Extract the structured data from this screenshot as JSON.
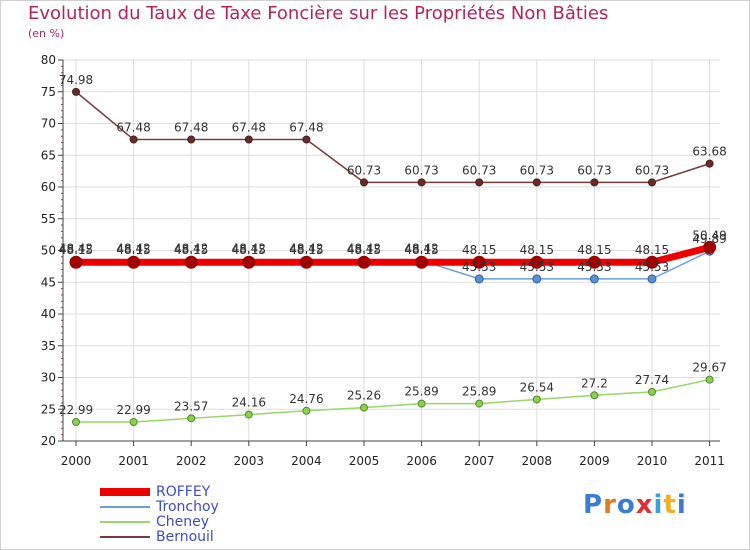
{
  "chart_data": {
    "type": "line",
    "title": "Evolution du Taux de Taxe Foncière sur les Propriétés Non Bâties",
    "ylabel": "(en %)",
    "xlabel": "",
    "ylim": [
      20,
      80
    ],
    "yticks": [
      20,
      25,
      30,
      35,
      40,
      45,
      50,
      55,
      60,
      65,
      70,
      75,
      80
    ],
    "categories": [
      "2000",
      "2001",
      "2002",
      "2003",
      "2004",
      "2005",
      "2006",
      "2007",
      "2008",
      "2009",
      "2010",
      "2011"
    ],
    "series": [
      {
        "name": "ROFFEY",
        "color": "#ee0000",
        "values": [
          48.15,
          48.15,
          48.15,
          48.15,
          48.15,
          48.15,
          48.15,
          48.15,
          48.15,
          48.15,
          48.15,
          50.49
        ],
        "labels": [
          "48.15",
          "48.15",
          "48.15",
          "48.15",
          "48.15",
          "48.15",
          "48.15",
          "48.15",
          "48.15",
          "48.15",
          "48.15",
          "50.49"
        ]
      },
      {
        "name": "Tronchoy",
        "color": "#6a9fd8",
        "values": [
          48.42,
          48.42,
          48.42,
          48.42,
          48.42,
          48.42,
          48.42,
          45.53,
          45.53,
          45.53,
          45.53,
          49.89
        ],
        "labels": [
          "48.42",
          "48.42",
          "48.42",
          "48.42",
          "48.42",
          "48.42",
          "48.42",
          "45.53",
          "45.53",
          "45.53",
          "45.53",
          "49.89"
        ]
      },
      {
        "name": "Cheney",
        "color": "#99d66a",
        "values": [
          22.99,
          22.99,
          23.57,
          24.16,
          24.76,
          25.26,
          25.89,
          25.89,
          26.54,
          27.2,
          27.74,
          29.67
        ],
        "labels": [
          "22.99",
          "22.99",
          "23.57",
          "24.16",
          "24.76",
          "25.26",
          "25.89",
          "25.89",
          "26.54",
          "27.2",
          "27.74",
          "29.67"
        ]
      },
      {
        "name": "Bernouil",
        "color": "#7a3b3b",
        "values": [
          74.98,
          67.48,
          67.48,
          67.48,
          67.48,
          60.73,
          60.73,
          60.73,
          60.73,
          60.73,
          60.73,
          63.68
        ],
        "labels": [
          "74.98",
          "67.48",
          "67.48",
          "67.48",
          "67.48",
          "60.73",
          "60.73",
          "60.73",
          "60.73",
          "60.73",
          "60.73",
          "63.68"
        ]
      }
    ]
  },
  "logo": {
    "text": "Proxiti",
    "colors": [
      "#3a7bd5",
      "#e07b20",
      "#3a7bd5",
      "#e03030",
      "#3aa0d5",
      "#f0b020",
      "#3a7bd5"
    ]
  }
}
